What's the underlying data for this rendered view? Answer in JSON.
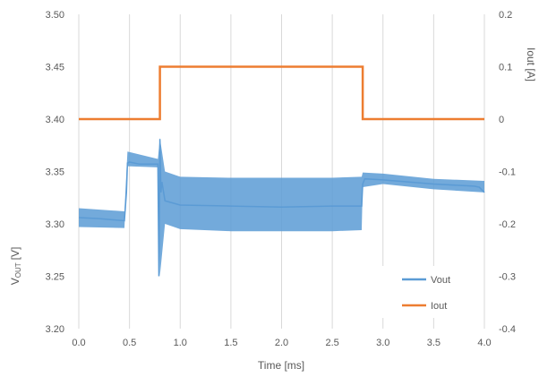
{
  "chart_data": {
    "type": "line",
    "xlabel": "Time [ms]",
    "ylabel_left_main": "V",
    "ylabel_left_sub": "OUT",
    "ylabel_left_unit": "[V]",
    "ylabel_right": "Iout [A]",
    "xlim": [
      0.0,
      4.0
    ],
    "ylim_left": [
      3.2,
      3.5
    ],
    "ylim_right": [
      -0.4,
      0.2
    ],
    "x_ticks": [
      "0.0",
      "0.5",
      "1.0",
      "1.5",
      "2.0",
      "2.5",
      "3.0",
      "3.5",
      "4.0"
    ],
    "y_left_ticks": [
      "3.20",
      "3.25",
      "3.30",
      "3.35",
      "3.40",
      "3.45",
      "3.50"
    ],
    "y_right_ticks": [
      "-0.4",
      "-0.3",
      "-0.2",
      "-0.1",
      "0",
      "0.1",
      "0.2"
    ],
    "grid": "vertical",
    "legend_position": "bottom-right",
    "colors": {
      "Vout": "#5b9bd5",
      "Iout": "#ed7d31",
      "grid": "#d9d9d9",
      "text": "#595959"
    },
    "series": [
      {
        "name": "Vout",
        "axis": "left",
        "x": [
          0.0,
          0.2,
          0.45,
          0.47,
          0.48,
          0.5,
          0.6,
          0.78,
          0.79,
          0.8,
          0.81,
          0.82,
          0.85,
          1.0,
          1.5,
          2.0,
          2.5,
          2.79,
          2.8,
          2.82,
          3.0,
          3.5,
          3.9,
          3.95,
          4.0
        ],
        "y": [
          3.306,
          3.305,
          3.303,
          3.33,
          3.358,
          3.359,
          3.357,
          3.357,
          3.25,
          3.381,
          3.33,
          3.34,
          3.322,
          3.318,
          3.317,
          3.316,
          3.317,
          3.317,
          3.338,
          3.343,
          3.342,
          3.338,
          3.336,
          3.335,
          3.33
        ],
        "band": {
          "x": [
            0.0,
            0.45,
            0.48,
            0.78,
            0.8,
            0.85,
            1.0,
            1.5,
            2.0,
            2.5,
            2.79,
            2.8,
            3.0,
            3.5,
            4.0
          ],
          "low": [
            3.297,
            3.296,
            3.355,
            3.354,
            3.25,
            3.3,
            3.295,
            3.293,
            3.293,
            3.293,
            3.294,
            3.335,
            3.338,
            3.333,
            3.33
          ],
          "high": [
            3.315,
            3.312,
            3.369,
            3.362,
            3.382,
            3.35,
            3.345,
            3.344,
            3.344,
            3.344,
            3.345,
            3.349,
            3.348,
            3.343,
            3.341
          ]
        }
      },
      {
        "name": "Iout",
        "axis": "right",
        "x": [
          0.0,
          0.8,
          0.8,
          2.8,
          2.8,
          4.0
        ],
        "y": [
          0.0,
          0.0,
          0.1,
          0.1,
          0.0,
          0.0
        ]
      }
    ]
  }
}
